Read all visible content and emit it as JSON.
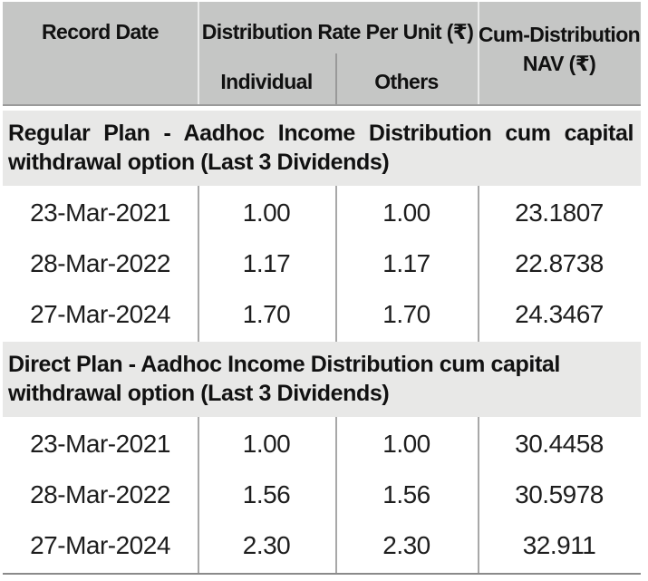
{
  "colors": {
    "header_bg": "#c5c6c5",
    "section_bg": "#e8e8e7",
    "header_border": "#9a9a9a",
    "cell_divider": "#a8a8a8",
    "bottom_border": "#8a8a8a",
    "text_dark": "#111111"
  },
  "table": {
    "header": {
      "record_date": "Record Date",
      "distribution_group": "Distribution Rate Per Unit (₹)",
      "individual": "Individual",
      "others": "Others",
      "cum_nav": "Cum-Distribution NAV (₹)"
    },
    "sections": [
      {
        "title": "Regular Plan - Aadhoc Income Distribution cum capital withdrawal option (Last 3 Dividends)",
        "rows": [
          {
            "record_date": "23-Mar-2021",
            "individual": "1.00",
            "others": "1.00",
            "nav": "23.1807"
          },
          {
            "record_date": "28-Mar-2022",
            "individual": "1.17",
            "others": "1.17",
            "nav": "22.8738"
          },
          {
            "record_date": "27-Mar-2024",
            "individual": "1.70",
            "others": "1.70",
            "nav": "24.3467"
          }
        ]
      },
      {
        "title": "Direct Plan - Aadhoc Income Distribution cum capital withdrawal option (Last 3 Dividends)",
        "rows": [
          {
            "record_date": "23-Mar-2021",
            "individual": "1.00",
            "others": "1.00",
            "nav": "30.4458"
          },
          {
            "record_date": "28-Mar-2022",
            "individual": "1.56",
            "others": "1.56",
            "nav": "30.5978"
          },
          {
            "record_date": "27-Mar-2024",
            "individual": "2.30",
            "others": "2.30",
            "nav": "32.911"
          }
        ]
      }
    ]
  }
}
